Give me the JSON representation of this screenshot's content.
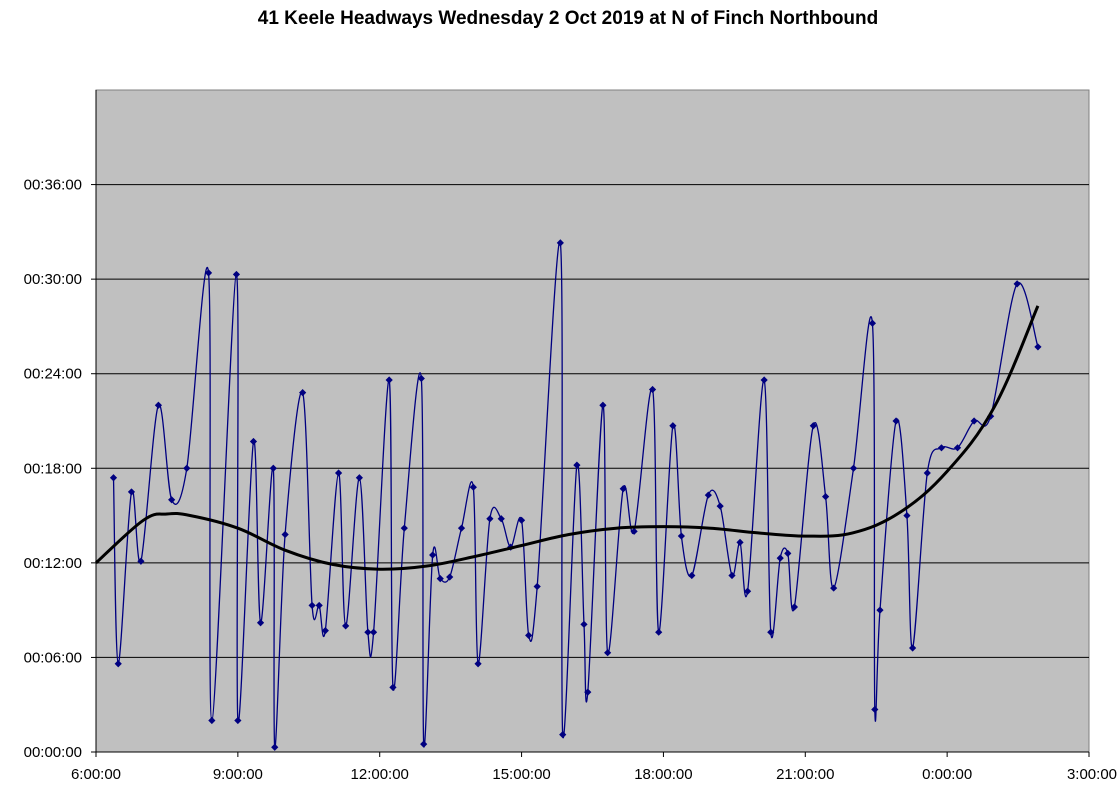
{
  "chart_data": {
    "type": "line",
    "title": "41 Keele Headways Wednesday 2 Oct 2019 at N of Finch Northbound",
    "xlabel": "",
    "ylabel": "",
    "x_axis": {
      "unit": "hours",
      "range": [
        6,
        27
      ],
      "tick_values": [
        6,
        9,
        12,
        15,
        18,
        21,
        24,
        27
      ],
      "tick_labels": [
        "6:00:00",
        "9:00:00",
        "12:00:00",
        "15:00:00",
        "18:00:00",
        "21:00:00",
        "0:00:00",
        "3:00:00"
      ]
    },
    "y_axis": {
      "unit": "minutes",
      "range": [
        0,
        42
      ],
      "tick_values": [
        0,
        6,
        12,
        18,
        24,
        30,
        36
      ],
      "tick_labels": [
        "00:00:00",
        "00:06:00",
        "00:12:00",
        "00:18:00",
        "00:24:00",
        "00:30:00",
        "00:36:00"
      ]
    },
    "grid": true,
    "legend": "none",
    "colors": {
      "plot_background": "#c0c0c0",
      "series": "#000080",
      "trend": "#000000",
      "grid": "#000000"
    },
    "series": [
      {
        "style": "smoothed-line-with-diamond-markers",
        "x": [
          6.37,
          6.47,
          6.75,
          6.95,
          7.32,
          7.6,
          7.92,
          8.38,
          8.45,
          8.97,
          9.0,
          9.33,
          9.48,
          9.75,
          9.78,
          10.0,
          10.37,
          10.57,
          10.72,
          10.85,
          11.13,
          11.28,
          11.57,
          11.75,
          11.87,
          12.2,
          12.28,
          12.52,
          12.88,
          12.93,
          13.12,
          13.28,
          13.48,
          13.73,
          13.98,
          14.08,
          14.33,
          14.57,
          14.77,
          15.0,
          15.15,
          15.33,
          15.82,
          15.87,
          16.17,
          16.32,
          16.4,
          16.72,
          16.82,
          17.15,
          17.38,
          17.77,
          17.9,
          18.2,
          18.38,
          18.6,
          18.95,
          19.2,
          19.45,
          19.62,
          19.78,
          20.13,
          20.27,
          20.47,
          20.63,
          20.77,
          21.17,
          21.43,
          21.6,
          22.02,
          22.42,
          22.47,
          22.58,
          22.92,
          23.15,
          23.27,
          23.58,
          23.88,
          24.22,
          24.57,
          24.92,
          25.48,
          25.92
        ],
        "y": [
          17.4,
          5.6,
          16.5,
          12.1,
          22.0,
          16.0,
          18.0,
          30.4,
          2.0,
          30.3,
          2.0,
          19.7,
          8.2,
          18.0,
          0.3,
          13.8,
          22.8,
          9.3,
          9.3,
          7.7,
          17.7,
          8.0,
          17.4,
          7.6,
          7.6,
          23.6,
          4.1,
          14.2,
          23.7,
          0.5,
          12.5,
          11.0,
          11.1,
          14.2,
          16.8,
          5.6,
          14.8,
          14.8,
          13.0,
          14.7,
          7.4,
          10.5,
          32.3,
          1.1,
          18.2,
          8.1,
          3.8,
          22.0,
          6.3,
          16.7,
          14.0,
          23.0,
          7.6,
          20.7,
          13.7,
          11.2,
          16.3,
          15.6,
          11.2,
          13.3,
          10.2,
          23.6,
          7.6,
          12.3,
          12.6,
          9.2,
          20.7,
          16.2,
          10.4,
          18.0,
          27.2,
          2.7,
          9.0,
          21.0,
          15.0,
          6.6,
          17.7,
          19.3,
          19.3,
          21.0,
          21.3,
          29.7,
          25.7
        ]
      },
      {
        "style": "polynomial-trendline",
        "x": [
          6.0,
          7.0,
          7.5,
          8.0,
          9.0,
          10.0,
          11.0,
          12.0,
          13.0,
          14.0,
          15.0,
          16.0,
          17.0,
          18.0,
          19.0,
          20.0,
          21.0,
          22.0,
          23.0,
          24.0,
          25.0,
          25.92
        ],
        "y": [
          12.0,
          14.7,
          15.1,
          15.0,
          14.2,
          12.8,
          11.9,
          11.6,
          11.8,
          12.4,
          13.1,
          13.8,
          14.2,
          14.3,
          14.2,
          13.9,
          13.7,
          13.9,
          15.2,
          17.8,
          21.9,
          28.3
        ]
      }
    ]
  }
}
